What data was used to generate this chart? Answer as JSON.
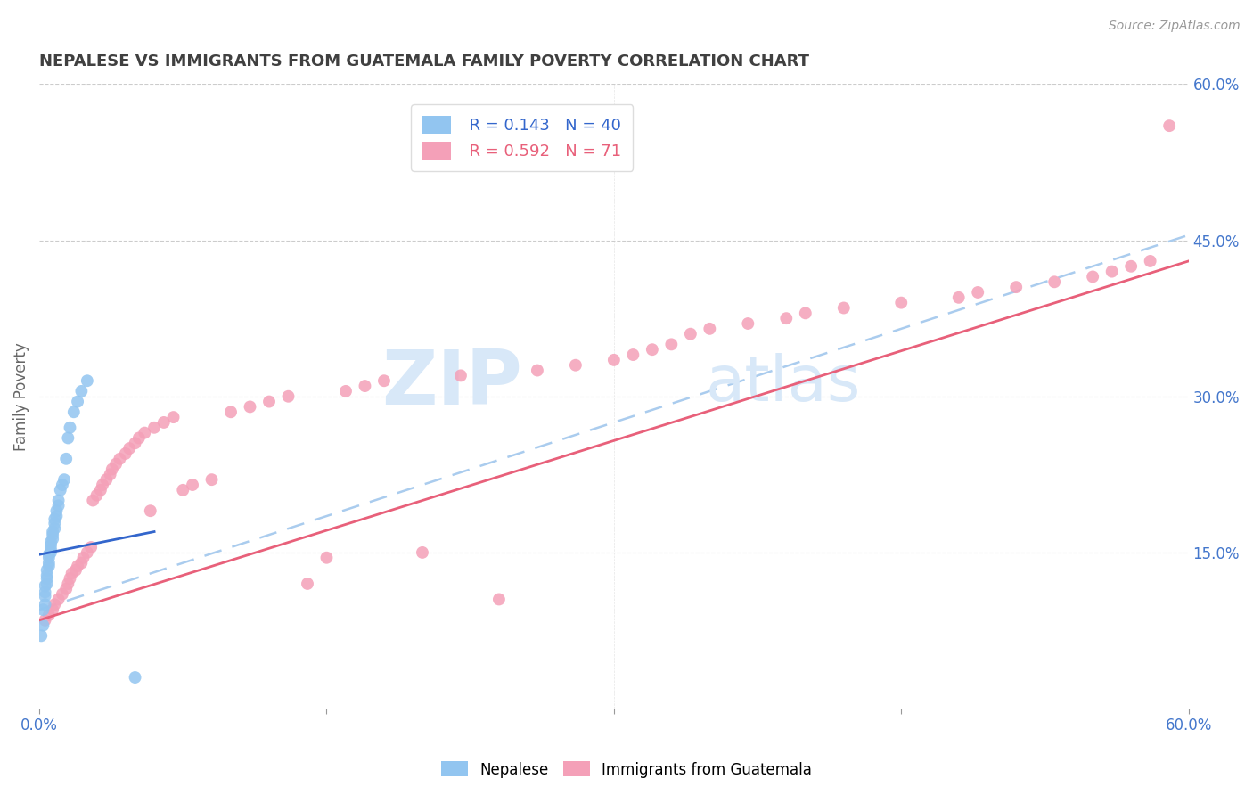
{
  "title": "NEPALESE VS IMMIGRANTS FROM GUATEMALA FAMILY POVERTY CORRELATION CHART",
  "source": "Source: ZipAtlas.com",
  "ylabel": "Family Poverty",
  "xlim": [
    0.0,
    0.6
  ],
  "ylim": [
    0.0,
    0.6
  ],
  "xtick_labels": [
    "0.0%",
    "",
    "",
    "",
    "60.0%"
  ],
  "xtick_vals": [
    0.0,
    0.15,
    0.3,
    0.45,
    0.6
  ],
  "ytick_labels_right": [
    "60.0%",
    "45.0%",
    "30.0%",
    "15.0%"
  ],
  "ytick_vals_right": [
    0.6,
    0.45,
    0.3,
    0.15
  ],
  "watermark_zip": "ZIP",
  "watermark_atlas": "atlas",
  "legend_r1": "R = 0.143",
  "legend_n1": "N = 40",
  "legend_r2": "R = 0.592",
  "legend_n2": "N = 71",
  "nepalese_color": "#92C5F0",
  "guatemala_color": "#F4A0B8",
  "nepalese_line_color": "#3366CC",
  "guatemala_line_color": "#E8607A",
  "dashed_line_color": "#AACCEE",
  "background_color": "#FFFFFF",
  "grid_color": "#CCCCCC",
  "title_color": "#404040",
  "axis_label_color": "#666666",
  "right_tick_color": "#4477CC",
  "bottom_tick_color": "#4477CC",
  "nepalese_x": [
    0.001,
    0.002,
    0.002,
    0.003,
    0.003,
    0.003,
    0.003,
    0.004,
    0.004,
    0.004,
    0.004,
    0.005,
    0.005,
    0.005,
    0.005,
    0.006,
    0.006,
    0.006,
    0.006,
    0.007,
    0.007,
    0.007,
    0.008,
    0.008,
    0.008,
    0.009,
    0.009,
    0.01,
    0.01,
    0.011,
    0.012,
    0.013,
    0.014,
    0.015,
    0.016,
    0.018,
    0.02,
    0.022,
    0.025,
    0.05
  ],
  "nepalese_y": [
    0.07,
    0.08,
    0.095,
    0.1,
    0.108,
    0.112,
    0.118,
    0.12,
    0.125,
    0.128,
    0.133,
    0.137,
    0.14,
    0.145,
    0.148,
    0.15,
    0.153,
    0.157,
    0.16,
    0.163,
    0.167,
    0.17,
    0.173,
    0.178,
    0.182,
    0.185,
    0.19,
    0.195,
    0.2,
    0.21,
    0.215,
    0.22,
    0.24,
    0.26,
    0.27,
    0.285,
    0.295,
    0.305,
    0.315,
    0.03
  ],
  "guatemala_x": [
    0.003,
    0.005,
    0.007,
    0.008,
    0.01,
    0.012,
    0.014,
    0.015,
    0.016,
    0.017,
    0.019,
    0.02,
    0.022,
    0.023,
    0.025,
    0.027,
    0.028,
    0.03,
    0.032,
    0.033,
    0.035,
    0.037,
    0.038,
    0.04,
    0.042,
    0.045,
    0.047,
    0.05,
    0.052,
    0.055,
    0.058,
    0.06,
    0.065,
    0.07,
    0.075,
    0.08,
    0.09,
    0.1,
    0.11,
    0.12,
    0.13,
    0.14,
    0.15,
    0.16,
    0.17,
    0.18,
    0.2,
    0.22,
    0.24,
    0.26,
    0.28,
    0.3,
    0.31,
    0.32,
    0.33,
    0.34,
    0.35,
    0.37,
    0.39,
    0.4,
    0.42,
    0.45,
    0.48,
    0.49,
    0.51,
    0.53,
    0.55,
    0.56,
    0.57,
    0.58,
    0.59
  ],
  "guatemala_y": [
    0.085,
    0.09,
    0.095,
    0.1,
    0.105,
    0.11,
    0.115,
    0.12,
    0.125,
    0.13,
    0.133,
    0.137,
    0.14,
    0.145,
    0.15,
    0.155,
    0.2,
    0.205,
    0.21,
    0.215,
    0.22,
    0.225,
    0.23,
    0.235,
    0.24,
    0.245,
    0.25,
    0.255,
    0.26,
    0.265,
    0.19,
    0.27,
    0.275,
    0.28,
    0.21,
    0.215,
    0.22,
    0.285,
    0.29,
    0.295,
    0.3,
    0.12,
    0.145,
    0.305,
    0.31,
    0.315,
    0.15,
    0.32,
    0.105,
    0.325,
    0.33,
    0.335,
    0.34,
    0.345,
    0.35,
    0.36,
    0.365,
    0.37,
    0.375,
    0.38,
    0.385,
    0.39,
    0.395,
    0.4,
    0.405,
    0.41,
    0.415,
    0.42,
    0.425,
    0.43,
    0.56
  ],
  "nepalese_line_x": [
    0.0,
    0.06
  ],
  "nepalese_line_y": [
    0.148,
    0.17
  ],
  "guatemala_line_x": [
    0.0,
    0.6
  ],
  "guatemala_line_y": [
    0.085,
    0.43
  ],
  "dashed_line_x": [
    0.0,
    0.6
  ],
  "dashed_line_y": [
    0.095,
    0.455
  ]
}
